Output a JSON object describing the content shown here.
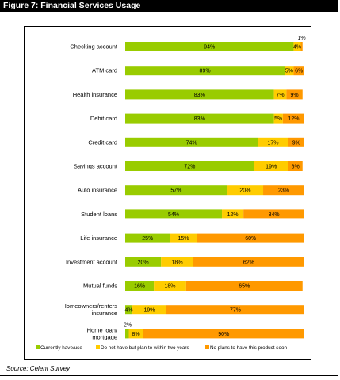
{
  "figure": {
    "title": "Figure 7: Financial Services Usage",
    "source": "Source: Celent Survey"
  },
  "colors": {
    "currently_have": "#99cc00",
    "plan_to_within_two_years": "#ffcc00",
    "no_plans": "#ff9900"
  },
  "chart_data": {
    "type": "bar",
    "orientation": "horizontal",
    "stacked": true,
    "xlim": [
      0,
      100
    ],
    "grid": false,
    "legend_position": "bottom",
    "categories": [
      "Checking account",
      "ATM card",
      "Health insurance",
      "Debit card",
      "Credit card",
      "Savings account",
      "Auto insurance",
      "Student loans",
      "Life insurance",
      "Investment account",
      "Mutual funds",
      "Homeowners/renters insurance",
      "Home loan/ mortgage"
    ],
    "series": [
      {
        "name": "Currently have/use",
        "values": [
          94,
          89,
          83,
          83,
          74,
          72,
          57,
          54,
          25,
          20,
          16,
          4,
          2
        ]
      },
      {
        "name": "Do not have but plan to within two years",
        "values": [
          4,
          5,
          7,
          5,
          17,
          19,
          20,
          12,
          15,
          18,
          18,
          19,
          8
        ]
      },
      {
        "name": "No plans to have this product soon",
        "values": [
          1,
          6,
          9,
          12,
          9,
          8,
          23,
          34,
          60,
          62,
          65,
          77,
          90
        ]
      }
    ]
  }
}
